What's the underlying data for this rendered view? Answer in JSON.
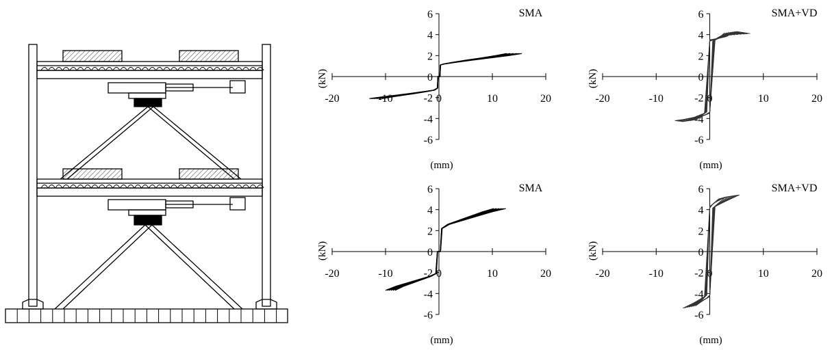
{
  "colors": {
    "ink": "#000000",
    "hatch": "#666666",
    "loop": "#333333",
    "background": "#ffffff"
  },
  "frame_drawing": {
    "name": "two-storey braced steel frame with SMA damper elevation"
  },
  "chart_data": [
    {
      "type": "line",
      "title": "SMA",
      "xlabel": "(mm)",
      "ylabel": "(kN)",
      "xlim": [
        -20,
        20
      ],
      "ylim": [
        -6,
        6
      ],
      "x_ticks": [
        -20,
        -10,
        0,
        10,
        20
      ],
      "y_ticks": [
        -6,
        -4,
        -2,
        0,
        2,
        4,
        6
      ],
      "grid": false,
      "loop_shape": "flag",
      "series": [
        {
          "x": [
            -13,
            -10,
            -6,
            -3,
            -1,
            -0.3,
            -0.2,
            0.2,
            0.3,
            1,
            3,
            6,
            10,
            13,
            15.5
          ],
          "y": [
            -2.1,
            -1.9,
            -1.65,
            -1.45,
            -1.3,
            -1.1,
            0,
            0,
            1.1,
            1.2,
            1.35,
            1.55,
            1.8,
            2.0,
            2.2
          ]
        }
      ]
    },
    {
      "type": "line",
      "title": "SMA+VD",
      "xlabel": "(mm)",
      "ylabel": "(kN)",
      "xlim": [
        -20,
        20
      ],
      "ylim": [
        -6,
        6
      ],
      "x_ticks": [
        -20,
        -10,
        0,
        10,
        20
      ],
      "y_ticks": [
        -6,
        -4,
        -2,
        0,
        2,
        4,
        6
      ],
      "grid": false,
      "loop_shape": "rounded-rectangular",
      "series": [
        {
          "x": [
            -6.5,
            -5,
            -3,
            -1,
            0,
            1,
            3,
            5,
            7.5,
            5,
            3,
            1,
            0,
            -1,
            -3,
            -5,
            -6.5
          ],
          "y": [
            -4.2,
            -4.3,
            -4.0,
            -3.7,
            -3.5,
            3.5,
            3.9,
            4.2,
            4.1,
            4.3,
            3.8,
            3.6,
            3.5,
            -3.5,
            -3.9,
            -4.1,
            -4.2
          ]
        }
      ]
    },
    {
      "type": "line",
      "title": "SMA",
      "xlabel": "(mm)",
      "ylabel": "(kN)",
      "xlim": [
        -20,
        20
      ],
      "ylim": [
        -6,
        6
      ],
      "x_ticks": [
        -20,
        -10,
        0,
        10,
        20
      ],
      "y_ticks": [
        -6,
        -4,
        -2,
        0,
        2,
        4,
        6
      ],
      "grid": false,
      "loop_shape": "flag",
      "series": [
        {
          "x": [
            -10,
            -8,
            -6,
            -4,
            -2,
            -0.6,
            -0.3,
            0.3,
            0.6,
            2,
            4,
            6,
            8,
            10,
            12.5
          ],
          "y": [
            -3.7,
            -3.3,
            -3.0,
            -2.7,
            -2.4,
            -2.1,
            0,
            0,
            2.2,
            2.6,
            2.9,
            3.2,
            3.5,
            3.8,
            4.1
          ]
        }
      ]
    },
    {
      "type": "line",
      "title": "SMA+VD",
      "xlabel": "(mm)",
      "ylabel": "(kN)",
      "xlim": [
        -20,
        20
      ],
      "ylim": [
        -6,
        6
      ],
      "x_ticks": [
        -20,
        -10,
        0,
        10,
        20
      ],
      "y_ticks": [
        -6,
        -4,
        -2,
        0,
        2,
        4,
        6
      ],
      "grid": false,
      "loop_shape": "rounded-rectangular",
      "series": [
        {
          "x": [
            -5,
            -3,
            -1,
            0,
            1,
            3,
            5.5,
            3,
            1,
            0,
            -1,
            -3,
            -5
          ],
          "y": [
            -5.4,
            -5.0,
            -4.6,
            -4.3,
            4.3,
            4.8,
            5.4,
            5.2,
            4.7,
            4.3,
            -4.3,
            -4.9,
            -5.4
          ]
        }
      ]
    }
  ]
}
